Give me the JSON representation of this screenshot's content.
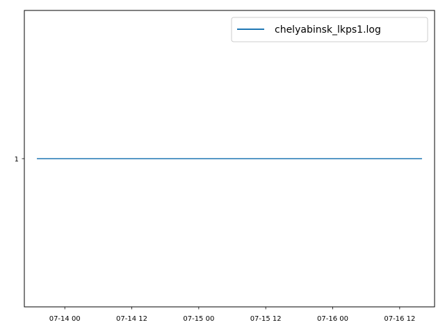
{
  "chart_data": {
    "type": "line",
    "title": "",
    "xlabel": "",
    "ylabel": "",
    "x_ticks": [
      "07-14 00",
      "07-14 12",
      "07-15 00",
      "07-15 12",
      "07-16 00",
      "07-16 12"
    ],
    "y_ticks": [
      "1"
    ],
    "xlim": [
      "2015-07-13 16:45",
      "2015-07-16 18:15"
    ],
    "ylim": [
      0.945,
      1.055
    ],
    "grid": false,
    "legend_position": "top-right",
    "series": [
      {
        "name": "chelyabinsk_lkps1.log",
        "color": "#1f77b4",
        "points": [
          {
            "x": "2015-07-13 19:00",
            "y": 1
          },
          {
            "x": "2015-07-16 16:00",
            "y": 1
          }
        ]
      }
    ]
  }
}
